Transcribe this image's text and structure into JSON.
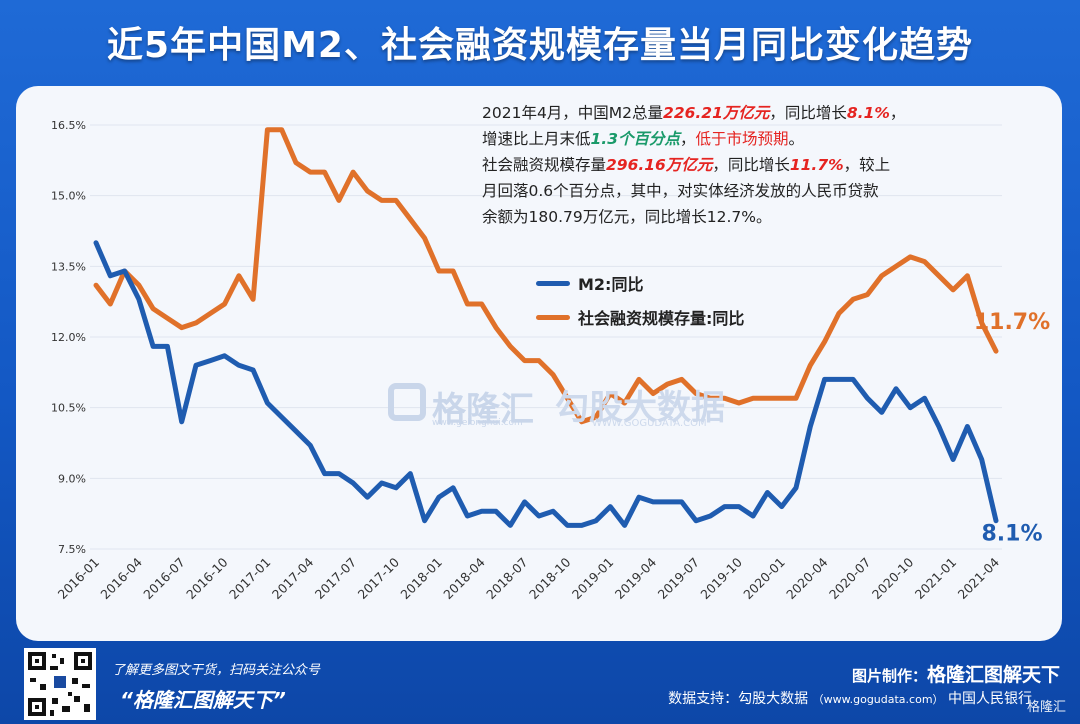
{
  "title": "近5年中国M2、社会融资规模存量当月同比变化趋势",
  "info": {
    "line1_a": "2021年4月，中国M2总量",
    "line1_b": "226.21万亿元",
    "line1_c": "，同比增长",
    "line1_d": "8.1%",
    "line1_e": "，",
    "line2_a": "增速比上月末低",
    "line2_b": "1.3个百分点",
    "line2_c": "，",
    "line2_d": "低于市场预期",
    "line2_e": "。",
    "line3_a": "社会融资规模存量",
    "line3_b": "296.16万亿元",
    "line3_c": "，同比增长",
    "line3_d": "11.7%",
    "line3_e": "，较上",
    "line4": "月回落0.6个百分点，其中，对实体经济发放的人民币贷款",
    "line5": "余额为180.79万亿元，同比增长12.7%。"
  },
  "watermark": {
    "brand": "格隆汇",
    "brand_url": "www.gelonghui.com",
    "brand2": "勾股大数据",
    "brand2_url": "WWW.GOGUDATA.COM"
  },
  "footer": {
    "promo_line": "了解更多图文干货，扫码关注公众号",
    "promo_name": "“格隆汇图解天下”",
    "made_label": "图片制作：",
    "made_brand": "格隆汇图解天下",
    "source_label": "数据支持：勾股大数据",
    "source_url": "（www.gogudata.com）",
    "source_tail": "中国人民银行",
    "corner_brand": "格隆汇"
  },
  "colors": {
    "m2": "#1f5cb0",
    "tsf": "#e0712a",
    "grid": "#dfe5ef"
  },
  "chart_data": {
    "type": "line",
    "title": "近5年中国M2、社会融资规模存量当月同比变化趋势",
    "xlabel": "",
    "ylabel": "",
    "ylim": [
      7.5,
      16.5
    ],
    "yticks": [
      "7.5%",
      "9.0%",
      "10.5%",
      "12.0%",
      "13.5%",
      "15.0%",
      "16.5%"
    ],
    "yticks_values": [
      7.5,
      9.0,
      10.5,
      12.0,
      13.5,
      15.0,
      16.5
    ],
    "xtick_labels": [
      "2016-01",
      "2016-04",
      "2016-07",
      "2016-10",
      "2017-01",
      "2017-04",
      "2017-07",
      "2017-10",
      "2018-01",
      "2018-04",
      "2018-07",
      "2018-10",
      "2019-01",
      "2019-04",
      "2019-07",
      "2019-10",
      "2020-01",
      "2020-04",
      "2020-07",
      "2020-10",
      "2021-01",
      "2021-04"
    ],
    "x": [
      "2016-01",
      "2016-02",
      "2016-03",
      "2016-04",
      "2016-05",
      "2016-06",
      "2016-07",
      "2016-08",
      "2016-09",
      "2016-10",
      "2016-11",
      "2016-12",
      "2017-01",
      "2017-02",
      "2017-03",
      "2017-04",
      "2017-05",
      "2017-06",
      "2017-07",
      "2017-08",
      "2017-09",
      "2017-10",
      "2017-11",
      "2017-12",
      "2018-01",
      "2018-02",
      "2018-03",
      "2018-04",
      "2018-05",
      "2018-06",
      "2018-07",
      "2018-08",
      "2018-09",
      "2018-10",
      "2018-11",
      "2018-12",
      "2019-01",
      "2019-02",
      "2019-03",
      "2019-04",
      "2019-05",
      "2019-06",
      "2019-07",
      "2019-08",
      "2019-09",
      "2019-10",
      "2019-11",
      "2019-12",
      "2020-01",
      "2020-02",
      "2020-03",
      "2020-04",
      "2020-05",
      "2020-06",
      "2020-07",
      "2020-08",
      "2020-09",
      "2020-10",
      "2020-11",
      "2020-12",
      "2021-01",
      "2021-02",
      "2021-03",
      "2021-04"
    ],
    "series": [
      {
        "name": "M2:同比",
        "end_label": "8.1%",
        "values": [
          14.0,
          13.3,
          13.4,
          12.8,
          11.8,
          11.8,
          10.2,
          11.4,
          11.5,
          11.6,
          11.4,
          11.3,
          10.6,
          10.3,
          10.0,
          9.7,
          9.1,
          9.1,
          8.9,
          8.6,
          8.9,
          8.8,
          9.1,
          8.1,
          8.6,
          8.8,
          8.2,
          8.3,
          8.3,
          8.0,
          8.5,
          8.2,
          8.3,
          8.0,
          8.0,
          8.1,
          8.4,
          8.0,
          8.6,
          8.5,
          8.5,
          8.5,
          8.1,
          8.2,
          8.4,
          8.4,
          8.2,
          8.7,
          8.4,
          8.8,
          10.1,
          11.1,
          11.1,
          11.1,
          10.7,
          10.4,
          10.9,
          10.5,
          10.7,
          10.1,
          9.4,
          10.1,
          9.4,
          8.1
        ]
      },
      {
        "name": "社会融资规模存量:同比",
        "end_label": "11.7%",
        "values": [
          13.1,
          12.7,
          13.4,
          13.1,
          12.6,
          12.4,
          12.2,
          12.3,
          12.5,
          12.7,
          13.3,
          12.8,
          16.4,
          16.4,
          15.7,
          15.5,
          15.5,
          14.9,
          15.5,
          15.1,
          14.9,
          14.9,
          14.5,
          14.1,
          13.4,
          13.4,
          12.7,
          12.7,
          12.2,
          11.8,
          11.5,
          11.5,
          11.2,
          10.7,
          10.2,
          10.3,
          10.8,
          10.6,
          11.1,
          10.8,
          11.0,
          11.1,
          10.8,
          10.7,
          10.7,
          10.6,
          10.7,
          10.7,
          10.7,
          10.7,
          11.4,
          11.9,
          12.5,
          12.8,
          12.9,
          13.3,
          13.5,
          13.7,
          13.6,
          13.3,
          13.0,
          13.3,
          12.3,
          11.7
        ]
      }
    ],
    "legend": "center-right",
    "grid": true
  }
}
